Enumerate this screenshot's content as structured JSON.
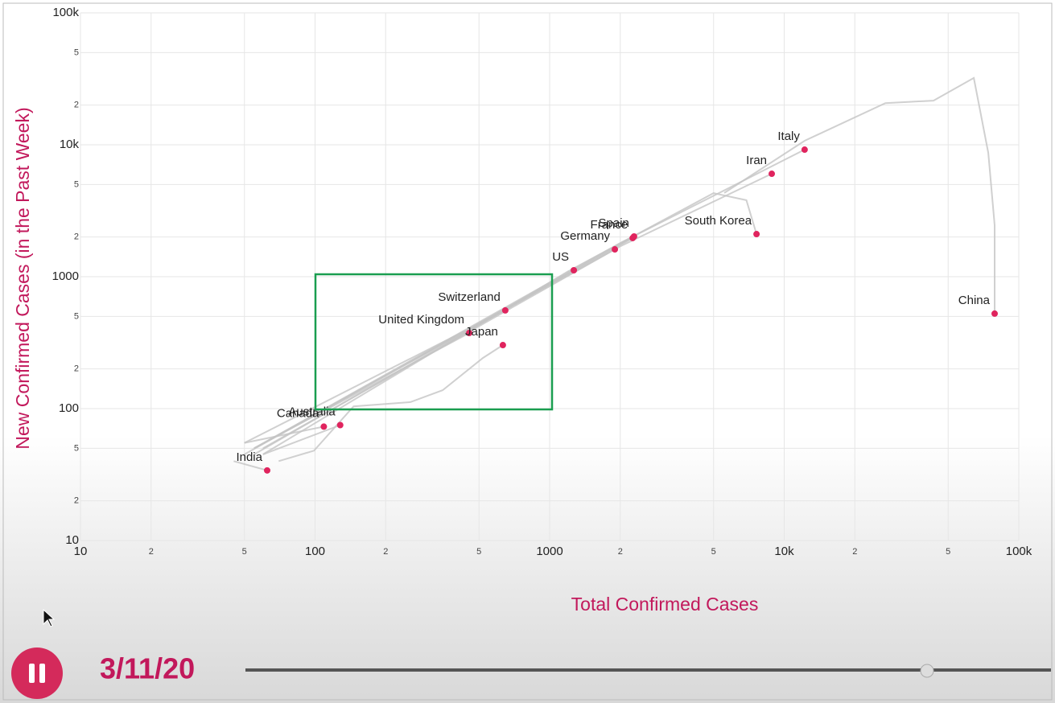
{
  "chart_data": {
    "type": "trajectory",
    "x_label": "Total Confirmed Cases",
    "y_label": "New Confirmed Cases (in the Past Week)",
    "date": "3/11/20",
    "log_x": true,
    "log_y": true,
    "grid": true,
    "color": "#e0245e",
    "trail_color": "#c4c4c4",
    "label_color": "#c2185b",
    "xlim": [
      10,
      100000
    ],
    "ylim": [
      10,
      100000
    ],
    "xticks": [
      10,
      {
        "value": 20,
        "label": "2"
      },
      {
        "value": 50,
        "label": "5"
      },
      100,
      {
        "value": 200,
        "label": "2"
      },
      {
        "value": 500,
        "label": "5"
      },
      1000,
      {
        "value": 2000,
        "label": "2"
      },
      {
        "value": 5000,
        "label": "5"
      },
      {
        "value": 10000,
        "label": "10k"
      },
      {
        "value": 20000,
        "label": "2"
      },
      {
        "value": 50000,
        "label": "5"
      },
      {
        "value": 100000,
        "label": "100k"
      }
    ],
    "yticks": [
      10,
      {
        "value": 20,
        "label": "2"
      },
      {
        "value": 50,
        "label": "5"
      },
      100,
      {
        "value": 200,
        "label": "2"
      },
      {
        "value": 500,
        "label": "5"
      },
      1000,
      {
        "value": 2000,
        "label": "2"
      },
      {
        "value": 5000,
        "label": "5"
      },
      {
        "value": 10000,
        "label": "10k"
      },
      {
        "value": 20000,
        "label": "2"
      },
      {
        "value": 50000,
        "label": "5"
      },
      {
        "value": 100000,
        "label": "100k"
      }
    ],
    "series": [
      {
        "name": "India",
        "x": [
          45,
          62.5
        ],
        "y": [
          40,
          34
        ]
      },
      {
        "name": "Canada",
        "x": [
          50,
          109
        ],
        "y": [
          55,
          73
        ]
      },
      {
        "name": "Australia",
        "x": [
          60,
          128
        ],
        "y": [
          45,
          75
        ]
      },
      {
        "name": "United Kingdom",
        "x": [
          55,
          454
        ],
        "y": [
          50,
          374
        ]
      },
      {
        "name": "Switzerland",
        "x": [
          50,
          647
        ],
        "y": [
          55,
          555
        ]
      },
      {
        "name": "Japan",
        "x": [
          70,
          99,
          146,
          255,
          350,
          519,
          632
        ],
        "y": [
          40,
          48,
          104,
          112,
          138,
          242,
          303
        ]
      },
      {
        "name": "US",
        "x": [
          55,
          1268
        ],
        "y": [
          45,
          1119
        ]
      },
      {
        "name": "Germany",
        "x": [
          55,
          1897
        ],
        "y": [
          50,
          1611
        ]
      },
      {
        "name": "France",
        "x": [
          55,
          2260
        ],
        "y": [
          50,
          1963
        ]
      },
      {
        "name": "Spain",
        "x": [
          50,
          2290
        ],
        "y": [
          45,
          2018
        ]
      },
      {
        "name": "South Korea",
        "x": [
          60,
          1200,
          5000,
          6900,
          7620
        ],
        "y": [
          45,
          1100,
          4300,
          3800,
          2104
        ]
      },
      {
        "name": "Iran",
        "x": [
          60,
          2000,
          8850
        ],
        "y": [
          50,
          1700,
          6030
        ]
      },
      {
        "name": "Italy",
        "x": [
          55,
          2000,
          12220
        ],
        "y": [
          50,
          1800,
          9190
        ]
      },
      {
        "name": "China",
        "x": [
          5550,
          12220,
          27000,
          43300,
          64300,
          74100,
          78900,
          78900
        ],
        "y": [
          4310,
          10720,
          20700,
          21600,
          32100,
          8690,
          2455,
          525
        ]
      }
    ]
  }
}
